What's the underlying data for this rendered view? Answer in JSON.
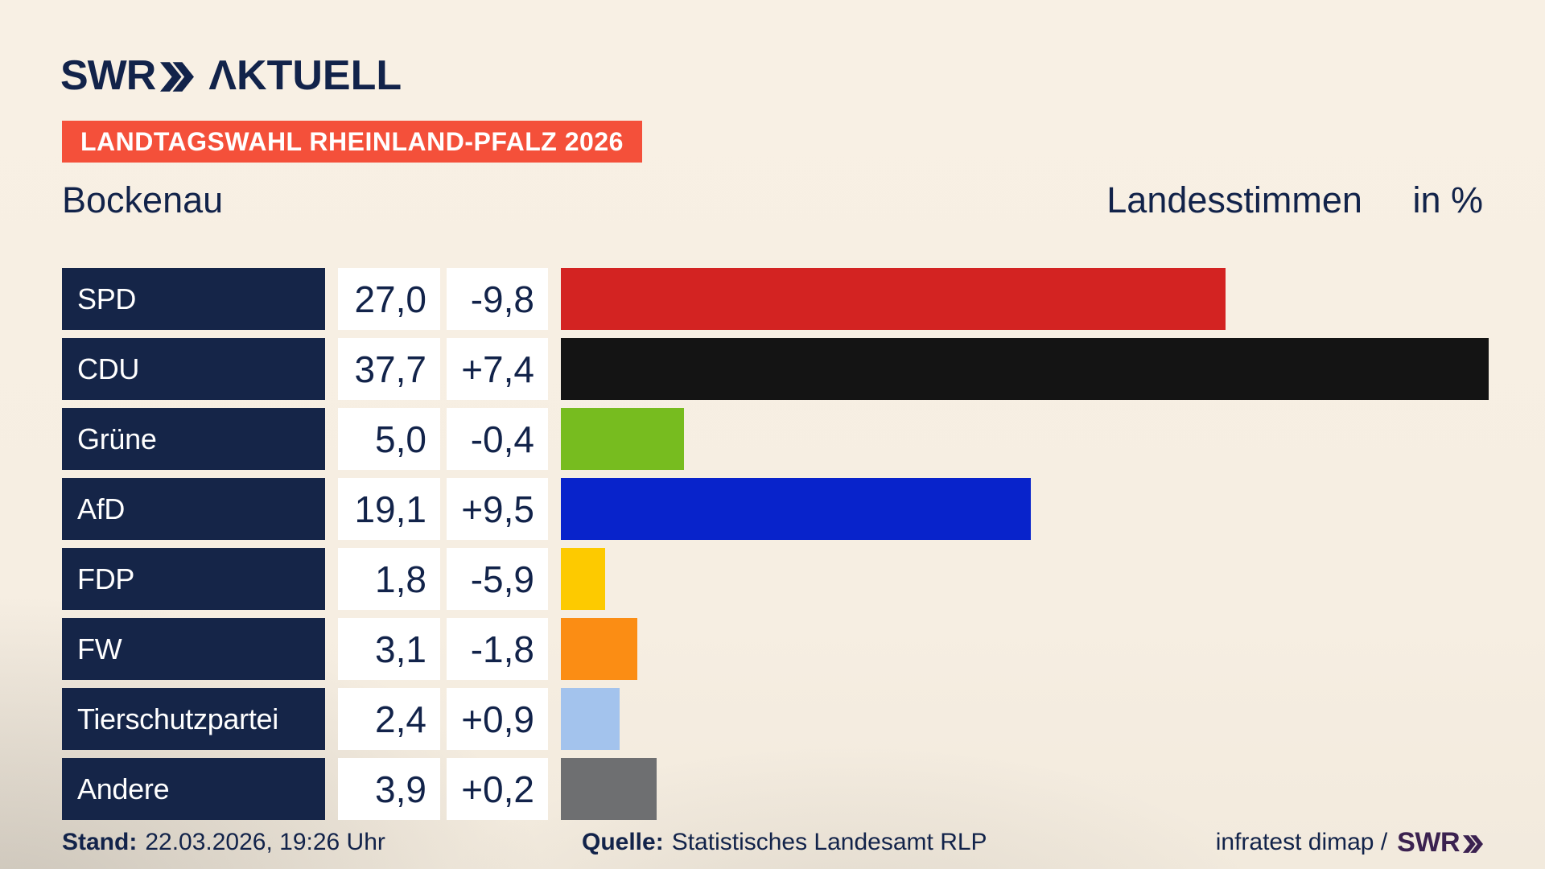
{
  "brand": {
    "logo_text": "SWR",
    "logo_suffix": "ΛKTUELL"
  },
  "header": {
    "badge": "LANDTAGSWAHL RHEINLAND-PFALZ 2026",
    "municipality": "Bockenau",
    "measure_label": "Landesstimmen",
    "unit_label": "in %"
  },
  "chart_data": {
    "type": "bar",
    "orientation": "horizontal",
    "title": "Landtagswahl Rheinland-Pfalz 2026 – Bockenau – Landesstimmen in %",
    "categories": [
      "SPD",
      "CDU",
      "Grüne",
      "AfD",
      "FDP",
      "FW",
      "Tierschutzpartei",
      "Andere"
    ],
    "series": [
      {
        "name": "result_percent",
        "values": [
          27.0,
          37.7,
          5.0,
          19.1,
          1.8,
          3.1,
          2.4,
          3.9
        ],
        "labels": [
          "27,0",
          "37,7",
          "5,0",
          "19,1",
          "1,8",
          "3,1",
          "2,4",
          "3,9"
        ]
      },
      {
        "name": "change_points",
        "values": [
          -9.8,
          7.4,
          -0.4,
          9.5,
          -5.9,
          -1.8,
          0.9,
          0.2
        ],
        "labels": [
          "-9,8",
          "+7,4",
          "-0,4",
          "+9,5",
          "-5,9",
          "-1,8",
          "+0,9",
          "+0,2"
        ]
      }
    ],
    "bar_colors": [
      "#d32322",
      "#141414",
      "#77bc1f",
      "#0823cb",
      "#fdca00",
      "#fb8d14",
      "#a3c3ed",
      "#6e6f71"
    ],
    "xlim": [
      0,
      40
    ],
    "grid": false,
    "legend": false
  },
  "footer": {
    "stand_label": "Stand:",
    "stand_value": "22.03.2026, 19:26 Uhr",
    "quelle_label": "Quelle:",
    "quelle_value": "Statistisches Landesamt RLP",
    "credit_text": "infratest dimap /",
    "credit_logo_text": "SWR"
  },
  "colors": {
    "background": "#f8f0e4",
    "navy": "#12234a",
    "panel": "#152548",
    "badge": "#f4503a",
    "credit_logo": "#3b2150"
  }
}
